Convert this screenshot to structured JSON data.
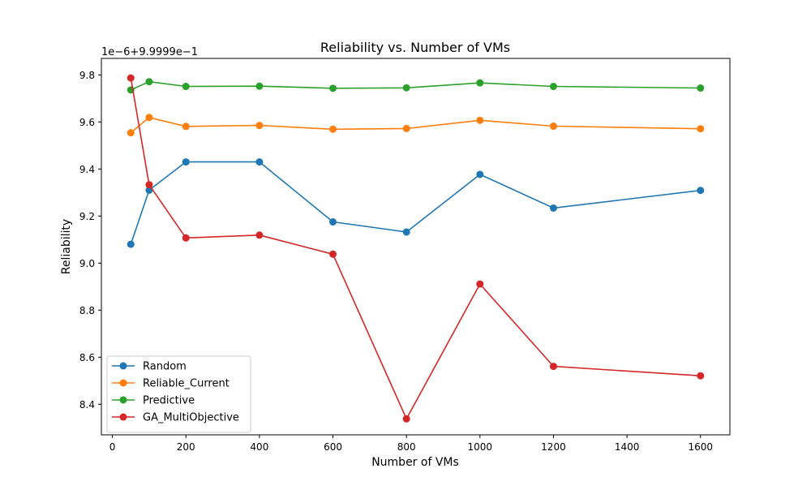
{
  "chart_data": {
    "type": "line",
    "title": "Reliability vs. Number of VMs",
    "xlabel": "Number of VMs",
    "ylabel": "Reliability",
    "offset_label": "1e−6+9.9999e−1",
    "x": [
      50,
      100,
      200,
      400,
      600,
      800,
      1000,
      1200,
      1600
    ],
    "xlim": [
      -30,
      1680
    ],
    "ylim": [
      8.27,
      9.87
    ],
    "xticks": [
      0,
      200,
      400,
      600,
      800,
      1000,
      1200,
      1400,
      1600
    ],
    "yticks": [
      8.4,
      8.6,
      8.8,
      9.0,
      9.2,
      9.4,
      9.6,
      9.8
    ],
    "ytick_labels": [
      "8.4",
      "8.6",
      "8.8",
      "9.0",
      "9.2",
      "9.4",
      "9.6",
      "9.8"
    ],
    "legend_position": "lower-left",
    "grid": false,
    "series": [
      {
        "name": "Random",
        "color": "#1f77b4",
        "values": [
          9.08,
          9.31,
          9.43,
          9.43,
          9.175,
          9.132,
          9.377,
          9.234,
          9.309
        ]
      },
      {
        "name": "Reliable_Current",
        "color": "#ff7f0e",
        "values": [
          9.554,
          9.619,
          9.581,
          9.585,
          9.569,
          9.572,
          9.607,
          9.582,
          9.571
        ]
      },
      {
        "name": "Predictive",
        "color": "#2ca02c",
        "values": [
          9.736,
          9.771,
          9.751,
          9.752,
          9.743,
          9.745,
          9.766,
          9.751,
          9.744
        ]
      },
      {
        "name": "GA_MultiObjective",
        "color": "#d62728",
        "values": [
          9.787,
          9.333,
          9.107,
          9.119,
          9.038,
          8.338,
          8.911,
          8.561,
          8.521
        ]
      }
    ]
  }
}
